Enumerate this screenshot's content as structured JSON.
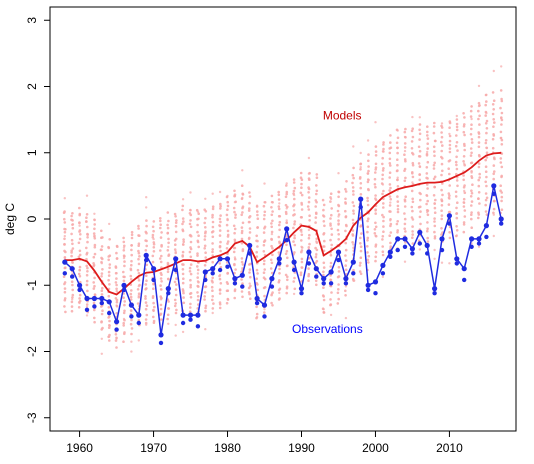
{
  "chart_data": {
    "type": "line",
    "title": "",
    "xlabel": "",
    "ylabel": "deg C",
    "xlim": [
      1956,
      2019
    ],
    "ylim": [
      -3.2,
      3.2
    ],
    "x_ticks": [
      1960,
      1970,
      1980,
      1990,
      2000,
      2010
    ],
    "y_ticks": [
      -3,
      -2,
      -1,
      0,
      1,
      2,
      3
    ],
    "grid": false,
    "legend": "none",
    "annotations": [
      {
        "text": "Models",
        "color": "#c00000",
        "x": 1995.5,
        "y": 1.5
      },
      {
        "text": "Observations",
        "color": "#0000ff",
        "x": 1993.5,
        "y": -1.72
      }
    ],
    "colors": {
      "models_line": "#dd1c1c",
      "models_ensemble": "#f7a8a8",
      "observations": "#1f2be0"
    },
    "years": [
      1958,
      1959,
      1960,
      1961,
      1962,
      1963,
      1964,
      1965,
      1966,
      1967,
      1968,
      1969,
      1970,
      1971,
      1972,
      1973,
      1974,
      1975,
      1976,
      1977,
      1978,
      1979,
      1980,
      1981,
      1982,
      1983,
      1984,
      1985,
      1986,
      1987,
      1988,
      1989,
      1990,
      1991,
      1992,
      1993,
      1994,
      1995,
      1996,
      1997,
      1998,
      1999,
      2000,
      2001,
      2002,
      2003,
      2004,
      2005,
      2006,
      2007,
      2008,
      2009,
      2010,
      2011,
      2012,
      2013,
      2014,
      2015,
      2016,
      2017
    ],
    "series": [
      {
        "name": "Models",
        "values": [
          -0.62,
          -0.62,
          -0.6,
          -0.64,
          -0.78,
          -0.95,
          -1.1,
          -1.14,
          -1.05,
          -0.95,
          -0.86,
          -0.81,
          -0.8,
          -0.76,
          -0.72,
          -0.67,
          -0.62,
          -0.62,
          -0.64,
          -0.63,
          -0.58,
          -0.55,
          -0.5,
          -0.37,
          -0.33,
          -0.42,
          -0.65,
          -0.58,
          -0.5,
          -0.42,
          -0.32,
          -0.2,
          -0.1,
          -0.12,
          -0.18,
          -0.55,
          -0.48,
          -0.4,
          -0.3,
          -0.1,
          0.02,
          0.1,
          0.22,
          0.33,
          0.39,
          0.45,
          0.48,
          0.5,
          0.53,
          0.55,
          0.55,
          0.56,
          0.6,
          0.65,
          0.7,
          0.78,
          0.88,
          0.96,
          0.99,
          1.0
        ]
      },
      {
        "name": "Observations",
        "values": [
          -0.65,
          -0.75,
          -1.0,
          -1.2,
          -1.2,
          -1.2,
          -1.25,
          -1.55,
          -1.0,
          -1.3,
          -1.45,
          -0.55,
          -0.75,
          -1.75,
          -1.05,
          -0.6,
          -1.45,
          -1.45,
          -1.45,
          -0.8,
          -0.75,
          -0.6,
          -0.6,
          -0.9,
          -0.85,
          -0.4,
          -1.2,
          -1.3,
          -0.9,
          -0.6,
          -0.15,
          -0.65,
          -1.05,
          -0.5,
          -0.75,
          -0.9,
          -0.8,
          -0.5,
          -0.9,
          -0.65,
          0.3,
          -1.0,
          -0.95,
          -0.7,
          -0.5,
          -0.3,
          -0.3,
          -0.45,
          -0.2,
          -0.4,
          -1.05,
          -0.3,
          0.05,
          -0.6,
          -0.75,
          -0.3,
          -0.3,
          -0.1,
          0.5,
          0.0
        ]
      }
    ]
  }
}
